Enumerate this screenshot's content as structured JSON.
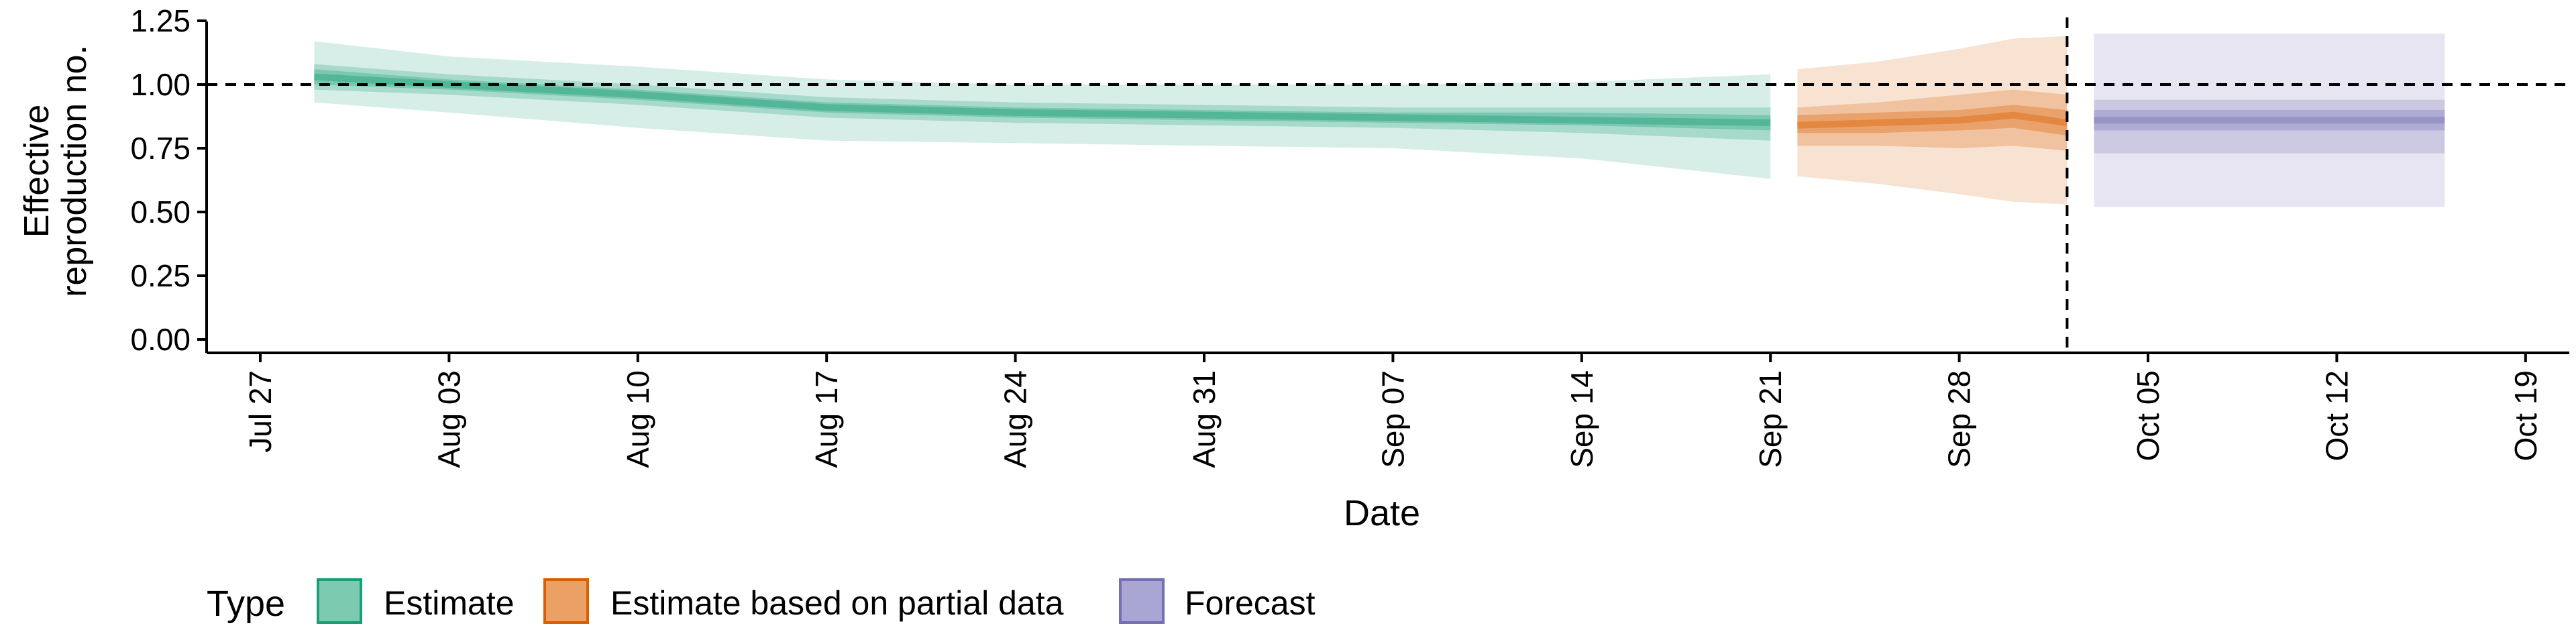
{
  "chart_data": {
    "type": "area",
    "title": "",
    "xlabel": "Date",
    "ylabel": [
      "Effective",
      "reproduction no."
    ],
    "x_scale": "date",
    "xlim": [
      "2020-07-24",
      "2020-10-20"
    ],
    "ylim": [
      0,
      1.25
    ],
    "x_ticks": [
      "2020-07-27",
      "2020-08-03",
      "2020-08-10",
      "2020-08-17",
      "2020-08-24",
      "2020-08-31",
      "2020-09-07",
      "2020-09-14",
      "2020-09-21",
      "2020-09-28",
      "2020-10-05",
      "2020-10-12",
      "2020-10-19"
    ],
    "x_tick_labels": [
      "Jul 27",
      "Aug 03",
      "Aug 10",
      "Aug 17",
      "Aug 24",
      "Aug 31",
      "Sep 07",
      "Sep 14",
      "Sep 21",
      "Sep 28",
      "Oct 05",
      "Oct 12",
      "Oct 19"
    ],
    "y_ticks": [
      0,
      0.25,
      0.5,
      0.75,
      1,
      1.25
    ],
    "y_tick_labels": [
      "0.00",
      "0.25",
      "0.50",
      "0.75",
      "1.00",
      "1.25"
    ],
    "reference_line_y": 1.0,
    "reference_line_x": "2020-10-02",
    "grid": false,
    "legend": {
      "title": "Type",
      "position": "bottom-left"
    },
    "series": [
      {
        "name": "Estimate",
        "color": "#1b9e77",
        "start": "2020-07-29",
        "end": "2020-09-21",
        "points": [
          {
            "x": "2020-07-29",
            "median": 1.03,
            "lo20": 1.0,
            "hi20": 1.06,
            "lo50": 0.98,
            "hi50": 1.08,
            "lo90": 0.93,
            "hi90": 1.17
          },
          {
            "x": "2020-08-03",
            "median": 1.0,
            "lo20": 0.98,
            "hi20": 1.02,
            "lo50": 0.96,
            "hi50": 1.04,
            "lo90": 0.89,
            "hi90": 1.11
          },
          {
            "x": "2020-08-10",
            "median": 0.96,
            "lo20": 0.94,
            "hi20": 0.98,
            "lo50": 0.92,
            "hi50": 1.0,
            "lo90": 0.83,
            "hi90": 1.07
          },
          {
            "x": "2020-08-17",
            "median": 0.91,
            "lo20": 0.89,
            "hi20": 0.93,
            "lo50": 0.87,
            "hi50": 0.95,
            "lo90": 0.78,
            "hi90": 1.02
          },
          {
            "x": "2020-08-24",
            "median": 0.89,
            "lo20": 0.87,
            "hi20": 0.91,
            "lo50": 0.85,
            "hi50": 0.93,
            "lo90": 0.77,
            "hi90": 1.0
          },
          {
            "x": "2020-08-31",
            "median": 0.88,
            "lo20": 0.86,
            "hi20": 0.9,
            "lo50": 0.84,
            "hi50": 0.92,
            "lo90": 0.76,
            "hi90": 1.0
          },
          {
            "x": "2020-09-07",
            "median": 0.87,
            "lo20": 0.85,
            "hi20": 0.89,
            "lo50": 0.83,
            "hi50": 0.91,
            "lo90": 0.75,
            "hi90": 1.0
          },
          {
            "x": "2020-09-14",
            "median": 0.86,
            "lo20": 0.84,
            "hi20": 0.89,
            "lo50": 0.81,
            "hi50": 0.91,
            "lo90": 0.71,
            "hi90": 1.01
          },
          {
            "x": "2020-09-21",
            "median": 0.85,
            "lo20": 0.82,
            "hi20": 0.88,
            "lo50": 0.78,
            "hi50": 0.91,
            "lo90": 0.63,
            "hi90": 1.04
          }
        ]
      },
      {
        "name": "Estimate based on partial data",
        "color": "#d95f02",
        "start": "2020-09-22",
        "end": "2020-10-02",
        "points": [
          {
            "x": "2020-09-22",
            "median": 0.84,
            "lo20": 0.81,
            "hi20": 0.88,
            "lo50": 0.76,
            "hi50": 0.91,
            "lo90": 0.64,
            "hi90": 1.06
          },
          {
            "x": "2020-09-25",
            "median": 0.85,
            "lo20": 0.81,
            "hi20": 0.89,
            "lo50": 0.76,
            "hi50": 0.93,
            "lo90": 0.61,
            "hi90": 1.09
          },
          {
            "x": "2020-09-28",
            "median": 0.86,
            "lo20": 0.82,
            "hi20": 0.9,
            "lo50": 0.75,
            "hi50": 0.96,
            "lo90": 0.57,
            "hi90": 1.14
          },
          {
            "x": "2020-09-30",
            "median": 0.88,
            "lo20": 0.83,
            "hi20": 0.92,
            "lo50": 0.76,
            "hi50": 0.98,
            "lo90": 0.54,
            "hi90": 1.18
          },
          {
            "x": "2020-10-02",
            "median": 0.85,
            "lo20": 0.8,
            "hi20": 0.9,
            "lo50": 0.74,
            "hi50": 0.96,
            "lo90": 0.53,
            "hi90": 1.19
          }
        ]
      },
      {
        "name": "Forecast",
        "color": "#7570b3",
        "start": "2020-10-03",
        "end": "2020-10-16",
        "points": [
          {
            "x": "2020-10-03",
            "median": 0.86,
            "lo20": 0.82,
            "hi20": 0.9,
            "lo50": 0.73,
            "hi50": 0.94,
            "lo90": 0.52,
            "hi90": 1.2
          },
          {
            "x": "2020-10-16",
            "median": 0.86,
            "lo20": 0.82,
            "hi20": 0.9,
            "lo50": 0.73,
            "hi50": 0.94,
            "lo90": 0.52,
            "hi90": 1.2
          }
        ]
      }
    ]
  }
}
